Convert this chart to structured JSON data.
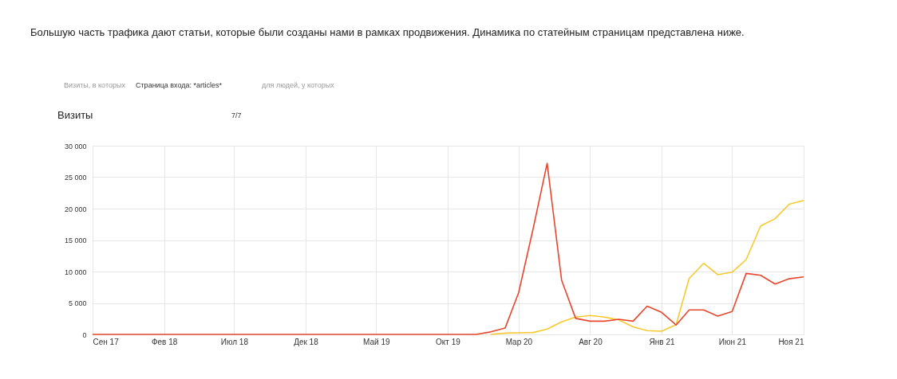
{
  "chart_data": {
    "type": "line",
    "title": "Большую часть трафика дают статьи, которые были созданы нами в рамках продвижения. Динамика по статейным страницам представлена ниже.",
    "ylabel": "Визиты",
    "annotations": [
      "Визиты, в которых",
      "Страница входа: *articles*",
      "для людей, у которых",
      "7/7"
    ],
    "x": [
      "2017-09",
      "2017-10",
      "2017-11",
      "2017-12",
      "2018-01",
      "2018-02",
      "2018-03",
      "2018-04",
      "2018-05",
      "2018-06",
      "2018-07",
      "2018-08",
      "2018-09",
      "2018-10",
      "2018-11",
      "2018-12",
      "2019-01",
      "2019-02",
      "2019-03",
      "2019-04",
      "2019-05",
      "2019-06",
      "2019-07",
      "2019-08",
      "2019-09",
      "2019-10",
      "2019-11",
      "2019-12",
      "2020-01",
      "2020-02",
      "2020-03",
      "2020-04",
      "2020-05",
      "2020-06",
      "2020-07",
      "2020-08",
      "2020-09",
      "2020-10",
      "2020-11",
      "2020-12",
      "2021-01",
      "2021-02",
      "2021-03",
      "2021-04",
      "2021-05",
      "2021-06",
      "2021-07",
      "2021-08",
      "2021-09",
      "2021-10",
      "2021-11"
    ],
    "series": [
      {
        "color": "#f7c92f",
        "values": [
          null,
          null,
          null,
          null,
          null,
          null,
          null,
          null,
          null,
          null,
          null,
          null,
          null,
          null,
          null,
          null,
          null,
          null,
          null,
          null,
          null,
          null,
          null,
          null,
          null,
          null,
          null,
          null,
          0,
          200,
          250,
          300,
          850,
          2000,
          2750,
          3000,
          2750,
          2300,
          1200,
          600,
          500,
          1550,
          8900,
          11300,
          9500,
          9900,
          11900,
          17250,
          18400,
          20700,
          21300
        ]
      },
      {
        "color": "#e8472d",
        "values": [
          0,
          0,
          0,
          0,
          0,
          0,
          0,
          0,
          0,
          0,
          0,
          0,
          0,
          0,
          0,
          0,
          0,
          0,
          0,
          0,
          0,
          0,
          0,
          0,
          0,
          0,
          0,
          0,
          400,
          1000,
          6650,
          16800,
          27200,
          8600,
          2550,
          2100,
          2100,
          2400,
          2100,
          4500,
          3500,
          1500,
          3900,
          3900,
          2900,
          3650,
          9700,
          9400,
          8000,
          8850,
          9150
        ]
      }
    ],
    "xlim": [
      "2017-09",
      "2021-11"
    ],
    "xticks": [
      {
        "value": "2017-09",
        "label": "Сен 17"
      },
      {
        "value": "2018-02",
        "label": "Фев 18"
      },
      {
        "value": "2018-07",
        "label": "Июл 18"
      },
      {
        "value": "2018-12",
        "label": "Дек 18"
      },
      {
        "value": "2019-05",
        "label": "Май 19"
      },
      {
        "value": "2019-10",
        "label": "Окт 19"
      },
      {
        "value": "2020-03",
        "label": "Мар 20"
      },
      {
        "value": "2020-08",
        "label": "Авг 20"
      },
      {
        "value": "2021-01",
        "label": "Янв 21"
      },
      {
        "value": "2021-06",
        "label": "Июн 21"
      },
      {
        "value": "2021-11",
        "label": "Ноя 21"
      }
    ],
    "ylim": [
      0,
      30000
    ],
    "yticks": [
      {
        "value": 0,
        "label": "0"
      },
      {
        "value": 5000,
        "label": "5 000"
      },
      {
        "value": 10000,
        "label": "10 000"
      },
      {
        "value": 15000,
        "label": "15 000"
      },
      {
        "value": 20000,
        "label": "20 000"
      },
      {
        "value": 25000,
        "label": "25 000"
      },
      {
        "value": 30000,
        "label": "30 000"
      }
    ],
    "grid": true,
    "marker": "none",
    "line_style": "solid"
  }
}
